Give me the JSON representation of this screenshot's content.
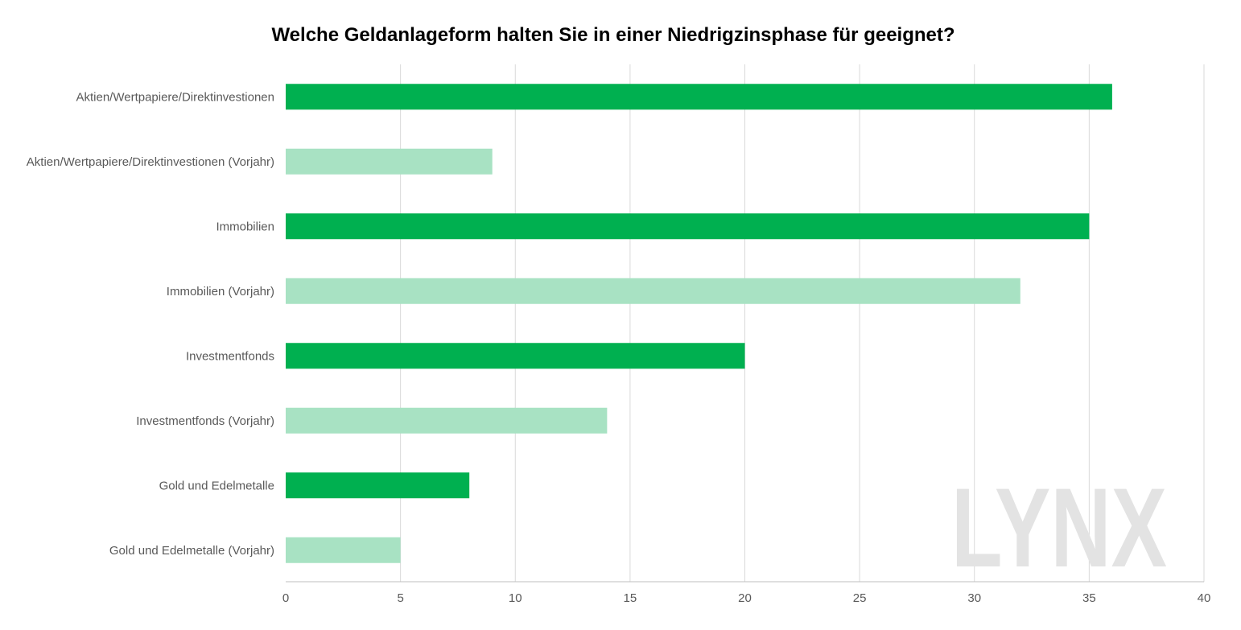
{
  "chart_data": {
    "type": "bar",
    "orientation": "horizontal",
    "title": "Welche Geldanlageform halten Sie in einer Niedrigzinsphase für geeignet?",
    "categories": [
      "Aktien/Wertpapiere/Direktinvestionen",
      "Aktien/Wertpapiere/Direktinvestionen (Vorjahr)",
      "Immobilien",
      "Immobilien (Vorjahr)",
      "Investmentfonds",
      "Investmentfonds (Vorjahr)",
      "Gold und Edelmetalle",
      "Gold und Edelmetalle (Vorjahr)"
    ],
    "values": [
      36,
      9,
      35,
      32,
      20,
      14,
      8,
      5
    ],
    "bar_colors": [
      "#00b050",
      "#a8e2c3",
      "#00b050",
      "#a8e2c3",
      "#00b050",
      "#a8e2c3",
      "#00b050",
      "#a8e2c3"
    ],
    "x_ticks": [
      0,
      5,
      10,
      15,
      20,
      25,
      30,
      35,
      40
    ],
    "xlim": [
      0,
      40
    ],
    "grid": "vertical",
    "legend": "none"
  },
  "watermark": {
    "text": "LYNX",
    "color": "#e3e3e3"
  },
  "colors": {
    "current_year": "#00b050",
    "previous_year": "#a8e2c3",
    "gridline": "#d9d9d9",
    "axis_line": "#bfbfbf",
    "label_text": "#595959"
  }
}
